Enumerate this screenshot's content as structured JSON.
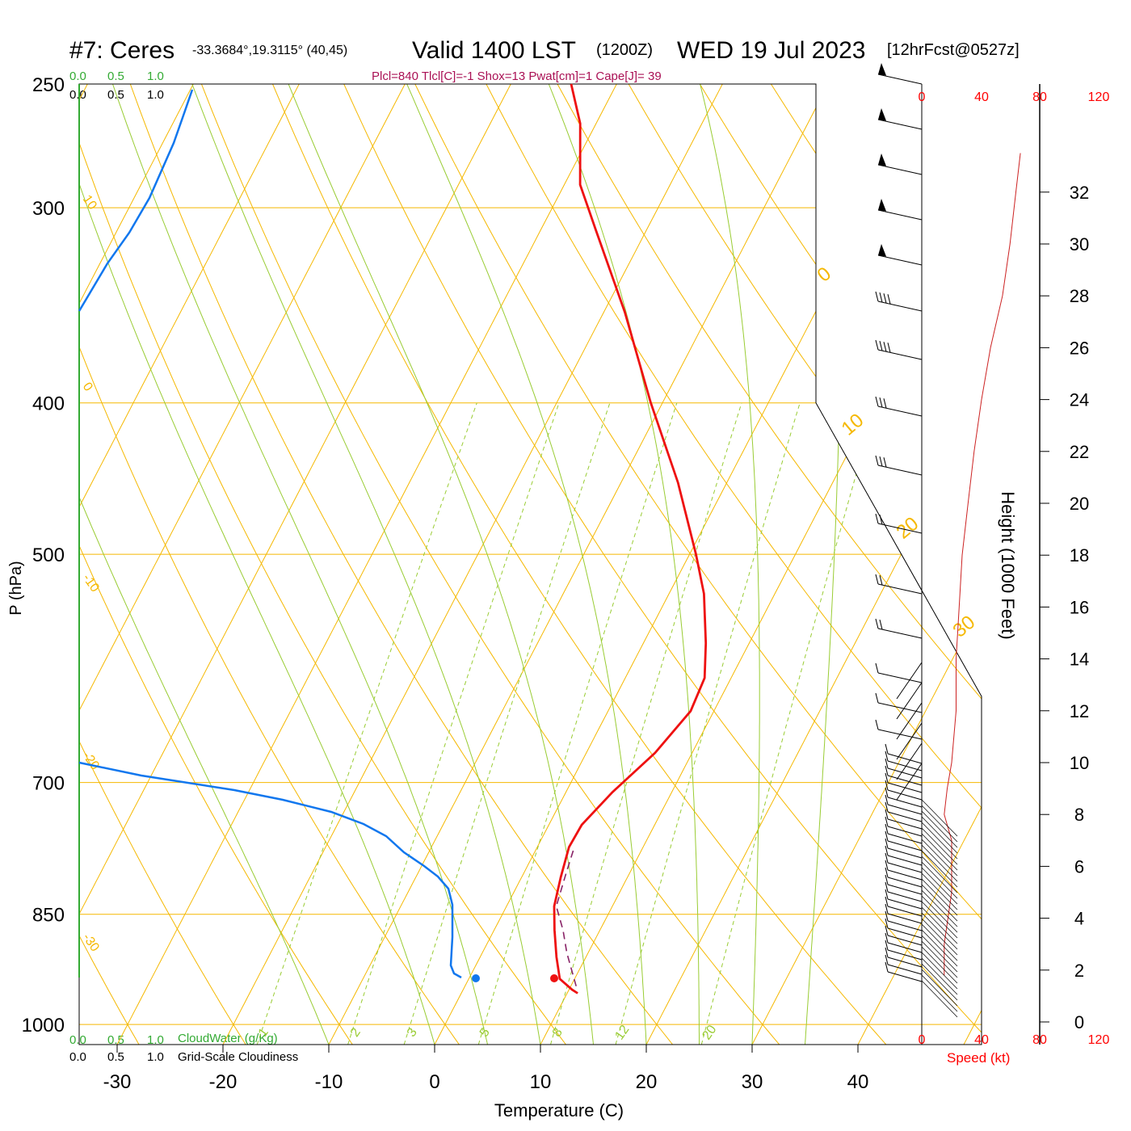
{
  "header": {
    "station": "#7: Ceres",
    "coords": "-33.3684°,19.3115° (40,45)",
    "valid": "Valid 1400 LST",
    "utc": "(1200Z)",
    "date": "WED 19 Jul 2023",
    "forecast": "[12hrFcst@0527z]",
    "indices": "Plcl=840 Tlcl[C]=-1 Shox=13 Pwat[cm]=1 Cape[J]= 39"
  },
  "colors": {
    "isotherm": "#f5b800",
    "dry_adiabat": "#f5b800",
    "moist_adiabat": "#99cc33",
    "mixing_ratio": "#99cc33",
    "temperature": "#ee1111",
    "parcel": "#882266",
    "cloud_water": "#1177ee",
    "cloud_axis": "#33aa33",
    "wind_speed": "#cc2222",
    "indices_text": "#aa1155",
    "scale_red": "#ff0000"
  },
  "labels": {
    "cloud_scale_top_green": [
      "0.0",
      "0.5",
      "1.0"
    ],
    "cloud_scale_top_black": [
      "0.0",
      "0.5",
      "1.0"
    ],
    "cloud_scale_bottom_green": [
      "0.0",
      "0.5",
      "1.0"
    ],
    "cloud_scale_bottom_black": [
      "0.0",
      "0.5",
      "1.0"
    ],
    "cloudwater_label": "CloudWater (g/Kg)",
    "cloudiness_label": "Grid-Scale Cloudiness",
    "speed_ticks_top": [
      "0",
      "40",
      "80",
      "120"
    ],
    "speed_ticks_bottom": [
      "0",
      "40",
      "80",
      "120"
    ],
    "speed_label": "Speed (kt)",
    "height_label": "Height (1000 Feet)",
    "p_label": "P (hPa)",
    "t_label": "Temperature (C)"
  },
  "chart_data": {
    "type": "skew-t",
    "xlabel": "Temperature (C)",
    "ylabel": "P (hPa)",
    "x_ticks": [
      -30,
      -20,
      -10,
      0,
      10,
      20,
      30,
      40
    ],
    "p_ticks": [
      250,
      300,
      400,
      500,
      700,
      850,
      1000
    ],
    "height_ticks_kft": [
      0,
      2,
      4,
      6,
      8,
      10,
      12,
      14,
      16,
      18,
      20,
      22,
      24,
      26,
      28,
      30,
      32
    ],
    "dry_adiabat_labels": [
      "10",
      "0",
      "-10",
      "-20",
      "-30"
    ],
    "dry_adiabat_labels_right": [
      "0",
      "10",
      "20",
      "30"
    ],
    "mixing_ratio_labels": [
      "1",
      "2",
      "3",
      "5",
      "8",
      "12",
      "20"
    ],
    "temperature_profile": [
      {
        "p": 955,
        "t": 11.0
      },
      {
        "p": 950,
        "t": 10.3
      },
      {
        "p": 935,
        "t": 8.6
      },
      {
        "p": 905,
        "t": 7.2
      },
      {
        "p": 870,
        "t": 5.7
      },
      {
        "p": 840,
        "t": 4.5
      },
      {
        "p": 805,
        "t": 3.7
      },
      {
        "p": 770,
        "t": 3.0
      },
      {
        "p": 745,
        "t": 3.1
      },
      {
        "p": 710,
        "t": 4.4
      },
      {
        "p": 670,
        "t": 6.5
      },
      {
        "p": 630,
        "t": 7.8
      },
      {
        "p": 600,
        "t": 7.5
      },
      {
        "p": 570,
        "t": 5.9
      },
      {
        "p": 530,
        "t": 3.3
      },
      {
        "p": 500,
        "t": 0.6
      },
      {
        "p": 450,
        "t": -4.6
      },
      {
        "p": 400,
        "t": -11.1
      },
      {
        "p": 350,
        "t": -18.0
      },
      {
        "p": 310,
        "t": -24.8
      },
      {
        "p": 290,
        "t": -28.5
      },
      {
        "p": 265,
        "t": -31.5
      },
      {
        "p": 250,
        "t": -34.3
      }
    ],
    "parcel_profile": [
      {
        "p": 945,
        "t": 10.5
      },
      {
        "p": 900,
        "t": 8.0
      },
      {
        "p": 870,
        "t": 6.5
      },
      {
        "p": 840,
        "t": 4.7
      },
      {
        "p": 800,
        "t": 4.0
      },
      {
        "p": 770,
        "t": 3.5
      }
    ],
    "surface_temperature": {
      "p": 955,
      "t": 11.2
    },
    "surface_dewpoint": {
      "p": 955,
      "t": 3.8
    },
    "cloud_water_profile": [
      {
        "p": 955,
        "cw": 0.0
      },
      {
        "p": 935,
        "cw": 0.0
      },
      {
        "p": 880,
        "cw": 0.0
      },
      {
        "p": 850,
        "cw": 0.0
      },
      {
        "p": 820,
        "cw": 0.0
      },
      {
        "p": 800,
        "cw": 0.0
      },
      {
        "p": 770,
        "cw": 0.0
      },
      {
        "p": 740,
        "cw": 0.0
      },
      {
        "p": 720,
        "cw": 0.0
      },
      {
        "p": 700,
        "cw": 0.0
      },
      {
        "p": 340,
        "cw": 0.0
      },
      {
        "p": 300,
        "cw": 0.0
      },
      {
        "p": 270,
        "cw": 0.0
      },
      {
        "p": 250,
        "cw": 0.0
      }
    ],
    "wind_speed_kt": [
      {
        "h": 1.8,
        "v": 15
      },
      {
        "h": 3,
        "v": 15
      },
      {
        "h": 5,
        "v": 20
      },
      {
        "h": 7,
        "v": 20
      },
      {
        "h": 8,
        "v": 15
      },
      {
        "h": 9,
        "v": 17
      },
      {
        "h": 10,
        "v": 20
      },
      {
        "h": 12,
        "v": 23
      },
      {
        "h": 14,
        "v": 23
      },
      {
        "h": 16,
        "v": 25
      },
      {
        "h": 18,
        "v": 27
      },
      {
        "h": 20,
        "v": 31
      },
      {
        "h": 22,
        "v": 35
      },
      {
        "h": 24,
        "v": 40
      },
      {
        "h": 26,
        "v": 46
      },
      {
        "h": 28,
        "v": 54
      },
      {
        "h": 30,
        "v": 59
      },
      {
        "h": 32,
        "v": 63
      },
      {
        "h": 33.5,
        "v": 66
      }
    ],
    "wind_barbs": [
      {
        "p": 250,
        "spd": 50
      },
      {
        "p": 268,
        "spd": 50
      },
      {
        "p": 286,
        "spd": 50
      },
      {
        "p": 305,
        "spd": 50
      },
      {
        "p": 325,
        "spd": 50
      },
      {
        "p": 350,
        "spd": 40
      },
      {
        "p": 375,
        "spd": 40
      },
      {
        "p": 405,
        "spd": 30
      },
      {
        "p": 440,
        "spd": 25
      },
      {
        "p": 480,
        "spd": 20
      },
      {
        "p": 520,
        "spd": 15
      },
      {
        "p": 560,
        "spd": 15
      },
      {
        "p": 600,
        "spd": 15
      },
      {
        "p": 640,
        "spd": 10
      },
      {
        "p": 675,
        "spd": 10
      },
      {
        "p": 700,
        "spd": 10
      },
      {
        "p": 720,
        "spd": 10
      },
      {
        "p": 740,
        "spd": 10
      },
      {
        "p": 760,
        "spd": 15
      },
      {
        "p": 780,
        "spd": 15
      },
      {
        "p": 800,
        "spd": 15
      },
      {
        "p": 820,
        "spd": 15
      },
      {
        "p": 840,
        "spd": 15
      },
      {
        "p": 860,
        "spd": 15
      },
      {
        "p": 880,
        "spd": 15
      },
      {
        "p": 900,
        "spd": 15
      },
      {
        "p": 920,
        "spd": 15
      },
      {
        "p": 940,
        "spd": 15
      },
      {
        "p": 960,
        "spd": 15
      },
      {
        "p": 980,
        "spd": 15
      }
    ]
  }
}
